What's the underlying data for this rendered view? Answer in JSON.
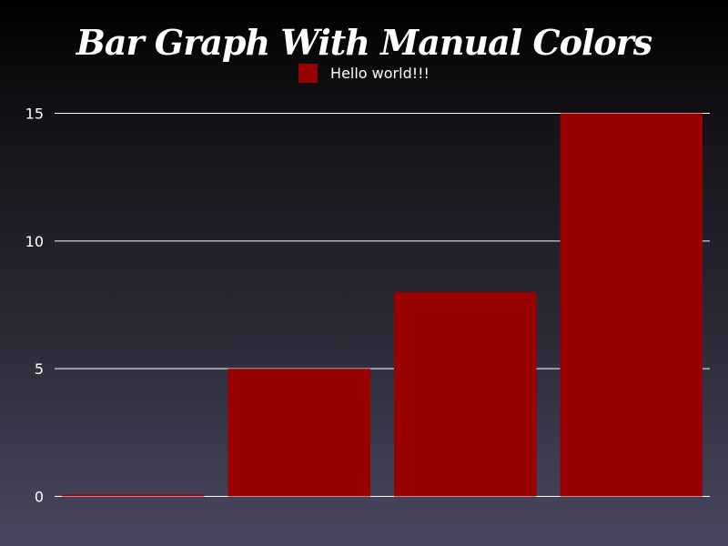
{
  "chart_data": {
    "type": "bar",
    "title": "Bar Graph With Manual Colors",
    "categories": [
      "",
      "",
      "",
      ""
    ],
    "series": [
      {
        "name": "Hello world!!!",
        "values": [
          0,
          5,
          8,
          15
        ],
        "color": "#990000"
      }
    ],
    "xlabel": "",
    "ylabel": "",
    "ylim": [
      0,
      15
    ],
    "yticks": [
      0,
      5,
      10,
      15
    ],
    "grid": true,
    "gridColor": "#ffffff",
    "legend": "top-center"
  }
}
